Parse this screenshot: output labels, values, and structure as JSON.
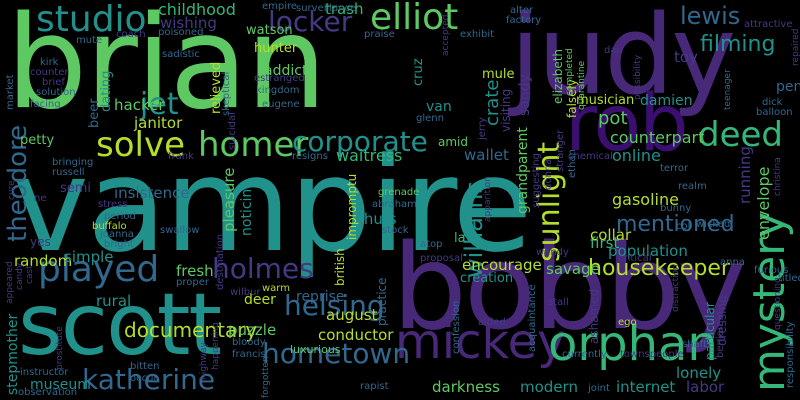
{
  "palette": {
    "green": "#5ec962",
    "teal": "#21918c",
    "purple": "#3b0f70",
    "violet": "#482878",
    "blue": "#31688e",
    "seafoam": "#35b779",
    "lime": "#b5de2b",
    "dark": "#443983"
  },
  "words": [
    {
      "text": "vampire",
      "color": "#21918c"
    },
    {
      "text": "brian",
      "color": "#5ec962"
    },
    {
      "text": "bobby",
      "color": "#482878"
    },
    {
      "text": "judy",
      "color": "#482878"
    },
    {
      "text": "scott",
      "color": "#21918c"
    },
    {
      "text": "rob",
      "color": "#3b0f70"
    },
    {
      "text": "mickey",
      "color": "#482878"
    },
    {
      "text": "orphan",
      "color": "#35b779"
    },
    {
      "text": "mystery",
      "color": "#35b779"
    },
    {
      "text": "elliot",
      "color": "#5ec962"
    },
    {
      "text": "studio",
      "color": "#21918c"
    },
    {
      "text": "played",
      "color": "#31688e"
    },
    {
      "text": "katherine",
      "color": "#31688e"
    },
    {
      "text": "hometown",
      "color": "#31688e"
    },
    {
      "text": "solve",
      "color": "#b5de2b"
    },
    {
      "text": "homer",
      "color": "#5ec962"
    },
    {
      "text": "deed",
      "color": "#35b779"
    },
    {
      "text": "corporate",
      "color": "#21918c"
    },
    {
      "text": "holmes",
      "color": "#443983"
    },
    {
      "text": "helsing",
      "color": "#31688e"
    },
    {
      "text": "locker",
      "color": "#443983"
    },
    {
      "text": "lewis",
      "color": "#31688e"
    },
    {
      "text": "sunlight",
      "color": "#b5de2b"
    },
    {
      "text": "williams",
      "color": "#21918c"
    },
    {
      "text": "theodore",
      "color": "#31688e"
    },
    {
      "text": "jet",
      "color": "#21918c"
    },
    {
      "text": "filming",
      "color": "#21918c"
    },
    {
      "text": "documentary",
      "color": "#b5de2b"
    },
    {
      "text": "housekeeper",
      "color": "#b5de2b"
    },
    {
      "text": "mentioned",
      "color": "#31688e"
    },
    {
      "text": "childhood",
      "color": "#35b779"
    },
    {
      "text": "wishing",
      "color": "#443983"
    },
    {
      "text": "trash",
      "color": "#35b779"
    },
    {
      "text": "waitress",
      "color": "#35b779"
    },
    {
      "text": "wallet",
      "color": "#31688e"
    },
    {
      "text": "online",
      "color": "#21918c"
    },
    {
      "text": "counterpart",
      "color": "#5ec962"
    },
    {
      "text": "pot",
      "color": "#5ec962"
    },
    {
      "text": "fresh",
      "color": "#5ec962"
    },
    {
      "text": "august",
      "color": "#b5de2b"
    },
    {
      "text": "conductor",
      "color": "#b5de2b"
    },
    {
      "text": "darkness",
      "color": "#5ec962"
    },
    {
      "text": "modern",
      "color": "#21918c"
    },
    {
      "text": "internet",
      "color": "#21918c"
    },
    {
      "text": "labor",
      "color": "#443983"
    },
    {
      "text": "lonely",
      "color": "#21918c"
    },
    {
      "text": "museum",
      "color": "#21918c"
    },
    {
      "text": "stepmother",
      "color": "#21918c"
    },
    {
      "text": "random",
      "color": "#b5de2b"
    },
    {
      "text": "rural",
      "color": "#21918c"
    },
    {
      "text": "simple",
      "color": "#21918c"
    },
    {
      "text": "deer",
      "color": "#b5de2b"
    },
    {
      "text": "reprise",
      "color": "#31688e"
    },
    {
      "text": "puzzle",
      "color": "#5ec962"
    },
    {
      "text": "luxurious",
      "color": "#5ec962"
    },
    {
      "text": "hacker",
      "color": "#5ec962"
    },
    {
      "text": "janitor",
      "color": "#b5de2b"
    },
    {
      "text": "beer",
      "color": "#31688e"
    },
    {
      "text": "dating",
      "color": "#21918c"
    },
    {
      "text": "petty",
      "color": "#5ec962"
    },
    {
      "text": "insistence",
      "color": "#31688e"
    },
    {
      "text": "pleasure",
      "color": "#5ec962"
    },
    {
      "text": "noticing",
      "color": "#21918c"
    },
    {
      "text": "shuts",
      "color": "#21918c"
    },
    {
      "text": "encourage",
      "color": "#b5de2b"
    },
    {
      "text": "creation",
      "color": "#21918c"
    },
    {
      "text": "savage",
      "color": "#5ec962"
    },
    {
      "text": "first",
      "color": "#35b779"
    },
    {
      "text": "collar",
      "color": "#b5de2b"
    },
    {
      "text": "population",
      "color": "#21918c"
    },
    {
      "text": "gasoline",
      "color": "#b5de2b"
    },
    {
      "text": "envelope",
      "color": "#5ec962"
    },
    {
      "text": "running",
      "color": "#443983"
    },
    {
      "text": "musician",
      "color": "#b5de2b"
    },
    {
      "text": "damien",
      "color": "#21918c"
    },
    {
      "text": "sandy",
      "color": "#443983"
    },
    {
      "text": "crate",
      "color": "#21918c"
    },
    {
      "text": "mule",
      "color": "#b5de2b"
    },
    {
      "text": "van",
      "color": "#21918c"
    },
    {
      "text": "cruz",
      "color": "#21918c"
    },
    {
      "text": "addict",
      "color": "#5ec962"
    },
    {
      "text": "hunter",
      "color": "#b5de2b"
    },
    {
      "text": "watson",
      "color": "#5ec962"
    },
    {
      "text": "relieved",
      "color": "#b5de2b"
    },
    {
      "text": "toy",
      "color": "#443983"
    },
    {
      "text": "pen",
      "color": "#31688e"
    },
    {
      "text": "grandparent",
      "color": "#5ec962"
    },
    {
      "text": "practice",
      "color": "#31688e"
    },
    {
      "text": "british",
      "color": "#b5de2b"
    },
    {
      "text": "impromptu",
      "color": "#b5de2b"
    },
    {
      "text": "visiting",
      "color": "#443983"
    },
    {
      "text": "elizabeth",
      "color": "#5ec962"
    },
    {
      "text": "falsely",
      "color": "#b5de2b"
    },
    {
      "text": "ashamed",
      "color": "#443983"
    },
    {
      "text": "particular",
      "color": "#21918c"
    },
    {
      "text": "dressing",
      "color": "#443983"
    },
    {
      "text": "amid",
      "color": "#5ec962"
    },
    {
      "text": "semi",
      "color": "#443983"
    },
    {
      "text": "yes",
      "color": "#443983"
    },
    {
      "text": "la",
      "color": "#35b779"
    },
    {
      "text": "occur",
      "color": "#31688e"
    },
    {
      "text": "bitten",
      "color": "#31688e"
    },
    {
      "text": "bloody",
      "color": "#31688e"
    },
    {
      "text": "francis",
      "color": "#31688e"
    },
    {
      "text": "suicidal",
      "color": "#443983"
    },
    {
      "text": "kingdom",
      "color": "#31688e"
    },
    {
      "text": "eugene",
      "color": "#31688e"
    },
    {
      "text": "skeptical",
      "color": "#31688e"
    },
    {
      "text": "sadistic",
      "color": "#31688e"
    },
    {
      "text": "estranged",
      "color": "#443983"
    },
    {
      "text": "poisoned",
      "color": "#31688e"
    },
    {
      "text": "coach",
      "color": "#443983"
    },
    {
      "text": "mute",
      "color": "#31688e"
    },
    {
      "text": "kirk",
      "color": "#31688e"
    },
    {
      "text": "counter",
      "color": "#443983"
    },
    {
      "text": "brief",
      "color": "#443983"
    },
    {
      "text": "solution",
      "color": "#31688e"
    },
    {
      "text": "facing",
      "color": "#31688e"
    },
    {
      "text": "market",
      "color": "#31688e"
    },
    {
      "text": "bringing",
      "color": "#31688e"
    },
    {
      "text": "russell",
      "color": "#31688e"
    },
    {
      "text": "stress",
      "color": "#443983"
    },
    {
      "text": "period",
      "color": "#31688e"
    },
    {
      "text": "buffalo",
      "color": "#b5de2b"
    },
    {
      "text": "joanna",
      "color": "#31688e"
    },
    {
      "text": "bright",
      "color": "#31688e"
    },
    {
      "text": "swallow",
      "color": "#31688e"
    },
    {
      "text": "destination",
      "color": "#443983"
    },
    {
      "text": "proper",
      "color": "#31688e"
    },
    {
      "text": "wilbur",
      "color": "#443983"
    },
    {
      "text": "warm",
      "color": "#b5de2b"
    },
    {
      "text": "grenade",
      "color": "#5ec962"
    },
    {
      "text": "abraham",
      "color": "#31688e"
    },
    {
      "text": "stock",
      "color": "#31688e"
    },
    {
      "text": "atop",
      "color": "#31688e"
    },
    {
      "text": "proposal",
      "color": "#443983"
    },
    {
      "text": "confession",
      "color": "#31688e"
    },
    {
      "text": "aided",
      "color": "#443983"
    },
    {
      "text": "acquaintance",
      "color": "#31688e"
    },
    {
      "text": "joint",
      "color": "#31688e"
    },
    {
      "text": "rapist",
      "color": "#31688e"
    },
    {
      "text": "currently",
      "color": "#31688e"
    },
    {
      "text": "townspeople",
      "color": "#443983"
    },
    {
      "text": "ego",
      "color": "#b5de2b"
    },
    {
      "text": "shaft",
      "color": "#31688e"
    },
    {
      "text": "benjamin",
      "color": "#443983"
    },
    {
      "text": "responsibility",
      "color": "#31688e"
    },
    {
      "text": "titled",
      "color": "#31688e"
    },
    {
      "text": "furious",
      "color": "#31688e"
    },
    {
      "text": "wicked",
      "color": "#31688e"
    },
    {
      "text": "bunny",
      "color": "#31688e"
    },
    {
      "text": "realm",
      "color": "#31688e"
    },
    {
      "text": "terror",
      "color": "#31688e"
    },
    {
      "text": "chemical",
      "color": "#443983"
    },
    {
      "text": "ethan",
      "color": "#31688e"
    },
    {
      "text": "frank",
      "color": "#443983"
    },
    {
      "text": "resigns",
      "color": "#31688e"
    },
    {
      "text": "glenn",
      "color": "#31688e"
    },
    {
      "text": "jerry",
      "color": "#443983"
    },
    {
      "text": "apparition",
      "color": "#443983"
    },
    {
      "text": "suggesting",
      "color": "#443983"
    },
    {
      "text": "donna",
      "color": "#443983"
    },
    {
      "text": "stranger",
      "color": "#443983"
    },
    {
      "text": "col",
      "color": "#31688e"
    },
    {
      "text": "critical",
      "color": "#443983"
    },
    {
      "text": "anna",
      "color": "#31688e"
    },
    {
      "text": "stall",
      "color": "#443983"
    },
    {
      "text": "wendy",
      "color": "#443983"
    },
    {
      "text": "surveillance",
      "color": "#31688e"
    },
    {
      "text": "praise",
      "color": "#31688e"
    },
    {
      "text": "empire",
      "color": "#31688e"
    },
    {
      "text": "alter",
      "color": "#31688e"
    },
    {
      "text": "factory",
      "color": "#31688e"
    },
    {
      "text": "exhibit",
      "color": "#31688e"
    },
    {
      "text": "completed",
      "color": "#5ec962"
    },
    {
      "text": "quarantine",
      "color": "#5ec962"
    },
    {
      "text": "possibility",
      "color": "#443983"
    },
    {
      "text": "dan",
      "color": "#443983"
    },
    {
      "text": "teenager",
      "color": "#31688e"
    },
    {
      "text": "repaired",
      "color": "#443983"
    },
    {
      "text": "attractive",
      "color": "#443983"
    },
    {
      "text": "dick",
      "color": "#31688e"
    },
    {
      "text": "balloon",
      "color": "#31688e"
    },
    {
      "text": "instructor",
      "color": "#31688e"
    },
    {
      "text": "observation",
      "color": "#31688e"
    },
    {
      "text": "prostitute",
      "color": "#443983"
    },
    {
      "text": "happening",
      "color": "#443983"
    },
    {
      "text": "forgotten",
      "color": "#31688e"
    },
    {
      "text": "appeared",
      "color": "#443983"
    },
    {
      "text": "candy",
      "color": "#443983"
    },
    {
      "text": "cast",
      "color": "#443983"
    },
    {
      "text": "ne",
      "color": "#443983"
    },
    {
      "text": "cure",
      "color": "#443983"
    },
    {
      "text": "accepted",
      "color": "#443983"
    },
    {
      "text": "distraction",
      "color": "#443983"
    },
    {
      "text": "christina",
      "color": "#443983"
    },
    {
      "text": "questioning",
      "color": "#443983"
    },
    {
      "text": "highway",
      "color": "#443983"
    }
  ]
}
